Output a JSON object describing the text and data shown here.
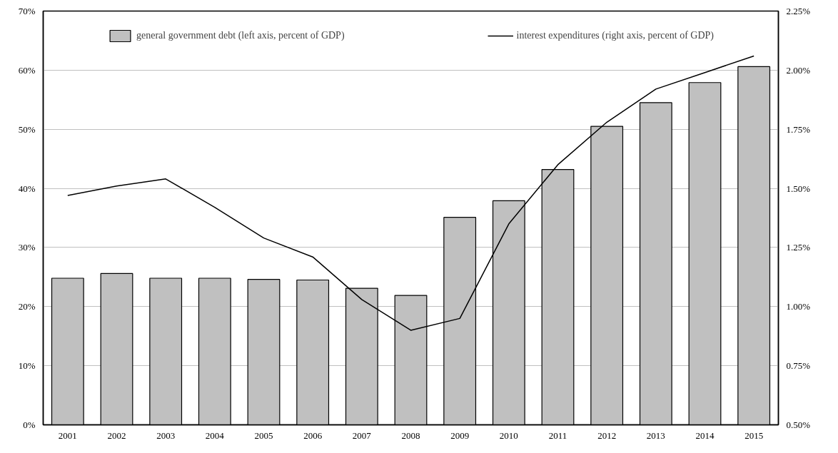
{
  "chart_data": {
    "type": "bar",
    "categories": [
      "2001",
      "2002",
      "2003",
      "2004",
      "2005",
      "2006",
      "2007",
      "2008",
      "2009",
      "2010",
      "2011",
      "2012",
      "2013",
      "2014",
      "2015"
    ],
    "series": [
      {
        "name": "general government debt (left axis, percent of GDP)",
        "color": "#c0c0c0",
        "values": [
          24.8,
          25.6,
          24.8,
          24.8,
          24.6,
          24.5,
          23.1,
          21.9,
          35.1,
          37.9,
          43.2,
          50.5,
          54.5,
          57.9,
          60.6
        ]
      },
      {
        "name": "interest expenditures (right axis, percent of GDP)",
        "type": "line",
        "axis": "y2",
        "color": "#000000",
        "values": [
          1.47,
          1.51,
          1.54,
          1.42,
          1.29,
          1.21,
          1.03,
          0.9,
          0.95,
          1.35,
          1.6,
          1.78,
          1.92,
          1.99,
          2.06
        ]
      }
    ],
    "ylim": [
      0,
      70
    ],
    "yticks": [
      {
        "value": 0,
        "label": "0%"
      },
      {
        "value": 10,
        "label": "10%"
      },
      {
        "value": 20,
        "label": "20%"
      },
      {
        "value": 30,
        "label": "30%"
      },
      {
        "value": 40,
        "label": "40%"
      },
      {
        "value": 50,
        "label": "50%"
      },
      {
        "value": 60,
        "label": "60%"
      },
      {
        "value": 70,
        "label": "70%"
      }
    ],
    "y2lim": [
      0.5,
      2.25
    ],
    "y2ticks": [
      {
        "value": 0.5,
        "label": "0.50%"
      },
      {
        "value": 0.75,
        "label": "0.75%"
      },
      {
        "value": 1.0,
        "label": "1.00%"
      },
      {
        "value": 1.25,
        "label": "1.25%"
      },
      {
        "value": 1.5,
        "label": "1.50%"
      },
      {
        "value": 1.75,
        "label": "1.75%"
      },
      {
        "value": 2.0,
        "label": "2.00%"
      },
      {
        "value": 2.25,
        "label": "2.25%"
      }
    ],
    "grid": "y",
    "legend": "top",
    "marker": "none",
    "line_style": "solid"
  }
}
